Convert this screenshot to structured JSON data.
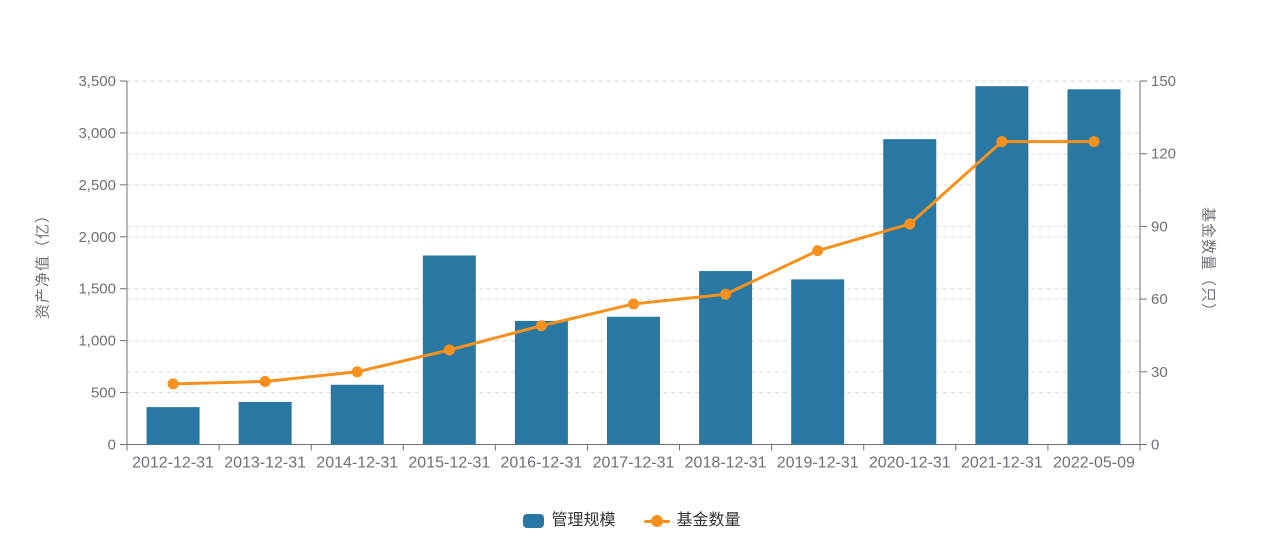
{
  "page": {
    "background": "#ffffff"
  },
  "chart_data": {
    "type": "bar",
    "subtype": "bar-line-combo-dual-axis",
    "title": "",
    "categories": [
      "2012-12-31",
      "2013-12-31",
      "2014-12-31",
      "2015-12-31",
      "2016-12-31",
      "2017-12-31",
      "2018-12-31",
      "2019-12-31",
      "2020-12-31",
      "2021-12-31",
      "2022-05-09"
    ],
    "series": [
      {
        "name": "管理规模",
        "type": "bar",
        "yaxis": "left",
        "color": "#2878A3",
        "values": [
          360,
          410,
          575,
          1820,
          1190,
          1230,
          1670,
          1590,
          2940,
          3450,
          3420
        ]
      },
      {
        "name": "基金数量",
        "type": "line",
        "yaxis": "right",
        "color": "#F6911E",
        "values": [
          25,
          26,
          30,
          39,
          49,
          58,
          62,
          80,
          91,
          125,
          125
        ]
      }
    ],
    "left_axis": {
      "title": "资产净值（亿）",
      "min": 0,
      "max": 3500,
      "step": 500,
      "tick_labels": [
        "0",
        "500",
        "1,000",
        "1,500",
        "2,000",
        "2,500",
        "3,000",
        "3,500"
      ]
    },
    "right_axis": {
      "title": "基金数量（只）",
      "min": 0,
      "max": 150,
      "step": 30,
      "tick_labels": [
        "0",
        "30",
        "60",
        "90",
        "120",
        "150"
      ]
    },
    "grid": {
      "horizontal_dashed": true,
      "vertical": false
    },
    "legend": {
      "position": "bottom-center",
      "items": [
        {
          "label": "管理规模",
          "marker": "round-rect"
        },
        {
          "label": "基金数量",
          "marker": "line-dot"
        }
      ]
    }
  },
  "styles": {
    "bar_color": "#2878A3",
    "line_color": "#F6911E",
    "grid_color": "#DBDBDB",
    "axis_line_color": "#6E7079",
    "tick_text_color": "#6E7079",
    "legend_text_color": "#333333"
  }
}
